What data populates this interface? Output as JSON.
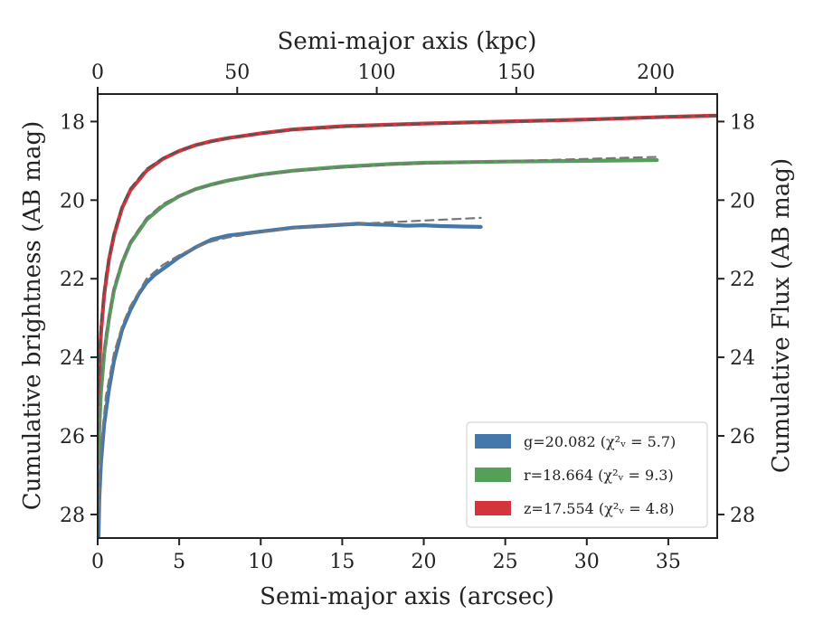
{
  "chart_data": {
    "type": "line",
    "title": "",
    "xlabel": "Semi-major axis (arcsec)",
    "ylabel": "Cumulative brightness (AB mag)",
    "top_xlabel": "Semi-major axis (kpc)",
    "right_ylabel": "Cumulative Flux (AB mag)",
    "xlim": [
      0,
      38
    ],
    "ylim": [
      28.6,
      17.3
    ],
    "y_inverted": true,
    "top_xlim": [
      0,
      222
    ],
    "x_ticks": [
      0,
      5,
      10,
      15,
      20,
      25,
      30,
      35
    ],
    "top_x_ticks": [
      0,
      50,
      100,
      150,
      200
    ],
    "y_ticks": [
      18,
      20,
      22,
      24,
      26,
      28
    ],
    "grid": false,
    "legend_position": "lower-right",
    "legend": [
      {
        "label": "g=20.082 (χ²ᵥ = 5.7)",
        "color": "#4477aa"
      },
      {
        "label": "r=18.664 (χ²ᵥ = 9.3)",
        "color": "#55a059"
      },
      {
        "label": "z=17.554 (χ²ᵥ = 4.8)",
        "color": "#d4343b"
      }
    ],
    "series": [
      {
        "name": "g",
        "color": "#4477aa",
        "x": [
          0.05,
          0.1,
          0.2,
          0.4,
          0.7,
          1.0,
          1.5,
          2.0,
          2.5,
          3.0,
          3.5,
          4.0,
          5.0,
          6.0,
          7.0,
          8.0,
          9.0,
          10.0,
          12.0,
          14.0,
          16.0,
          17.0,
          18.0,
          19.0,
          20.0,
          21.0,
          22.0,
          23.5
        ],
        "y": [
          28.6,
          27.6,
          26.7,
          25.7,
          24.8,
          24.1,
          23.3,
          22.8,
          22.4,
          22.1,
          21.9,
          21.75,
          21.45,
          21.2,
          21.0,
          20.9,
          20.85,
          20.8,
          20.7,
          20.65,
          20.6,
          20.62,
          20.63,
          20.65,
          20.64,
          20.66,
          20.67,
          20.68
        ]
      },
      {
        "name": "g-model",
        "color": "#777777",
        "dashed": true,
        "x": [
          0.05,
          0.2,
          0.5,
          1.0,
          1.5,
          2.0,
          3.0,
          4.0,
          5.0,
          6.0,
          7.0,
          8.0,
          10.0,
          12.0,
          14.0,
          16.0,
          18.0,
          20.0,
          22.0,
          23.5
        ],
        "y": [
          28.2,
          26.3,
          25.0,
          23.9,
          23.2,
          22.7,
          22.0,
          21.65,
          21.4,
          21.2,
          21.05,
          20.95,
          20.82,
          20.72,
          20.65,
          20.6,
          20.56,
          20.52,
          20.48,
          20.45
        ]
      },
      {
        "name": "r",
        "color": "#55a059",
        "x": [
          0.05,
          0.1,
          0.2,
          0.4,
          0.7,
          1.0,
          1.5,
          2.0,
          3.0,
          4.0,
          5.0,
          6.0,
          7.0,
          8.0,
          10.0,
          12.0,
          15.0,
          18.0,
          20.0,
          25.0,
          30.0,
          34.3
        ],
        "y": [
          26.7,
          25.8,
          24.9,
          23.9,
          23.0,
          22.3,
          21.6,
          21.1,
          20.5,
          20.15,
          19.9,
          19.72,
          19.6,
          19.5,
          19.35,
          19.25,
          19.15,
          19.08,
          19.05,
          19.02,
          19.0,
          18.98
        ]
      },
      {
        "name": "r-model",
        "color": "#777777",
        "dashed": true,
        "x": [
          0.05,
          0.2,
          0.5,
          1.0,
          1.5,
          2.0,
          3.0,
          4.0,
          5.0,
          6.0,
          8.0,
          10.0,
          12.0,
          15.0,
          18.0,
          20.0,
          25.0,
          30.0,
          34.3
        ],
        "y": [
          26.2,
          24.6,
          23.4,
          22.2,
          21.55,
          21.05,
          20.45,
          20.1,
          19.88,
          19.72,
          19.5,
          19.36,
          19.27,
          19.17,
          19.1,
          19.07,
          19.01,
          18.95,
          18.9
        ]
      },
      {
        "name": "z",
        "color": "#d4343b",
        "x": [
          0.05,
          0.1,
          0.2,
          0.4,
          0.7,
          1.0,
          1.5,
          2.0,
          3.0,
          4.0,
          5.0,
          6.0,
          7.0,
          8.0,
          10.0,
          12.0,
          15.0,
          20.0,
          25.0,
          30.0,
          35.0,
          38.0
        ],
        "y": [
          25.2,
          24.3,
          23.4,
          22.4,
          21.5,
          20.9,
          20.2,
          19.75,
          19.25,
          18.95,
          18.75,
          18.6,
          18.5,
          18.42,
          18.3,
          18.2,
          18.12,
          18.05,
          18.0,
          17.95,
          17.88,
          17.85
        ]
      },
      {
        "name": "z-model",
        "color": "#555555",
        "dashed": true,
        "x": [
          0.05,
          0.2,
          0.5,
          1.0,
          1.5,
          2.0,
          3.0,
          4.0,
          5.0,
          6.0,
          8.0,
          10.0,
          12.0,
          15.0,
          20.0,
          25.0,
          30.0,
          35.0,
          38.0
        ],
        "y": [
          24.8,
          23.1,
          21.9,
          20.8,
          20.15,
          19.7,
          19.2,
          18.93,
          18.74,
          18.6,
          18.42,
          18.3,
          18.21,
          18.13,
          18.06,
          18.0,
          17.95,
          17.88,
          17.84
        ]
      }
    ]
  }
}
